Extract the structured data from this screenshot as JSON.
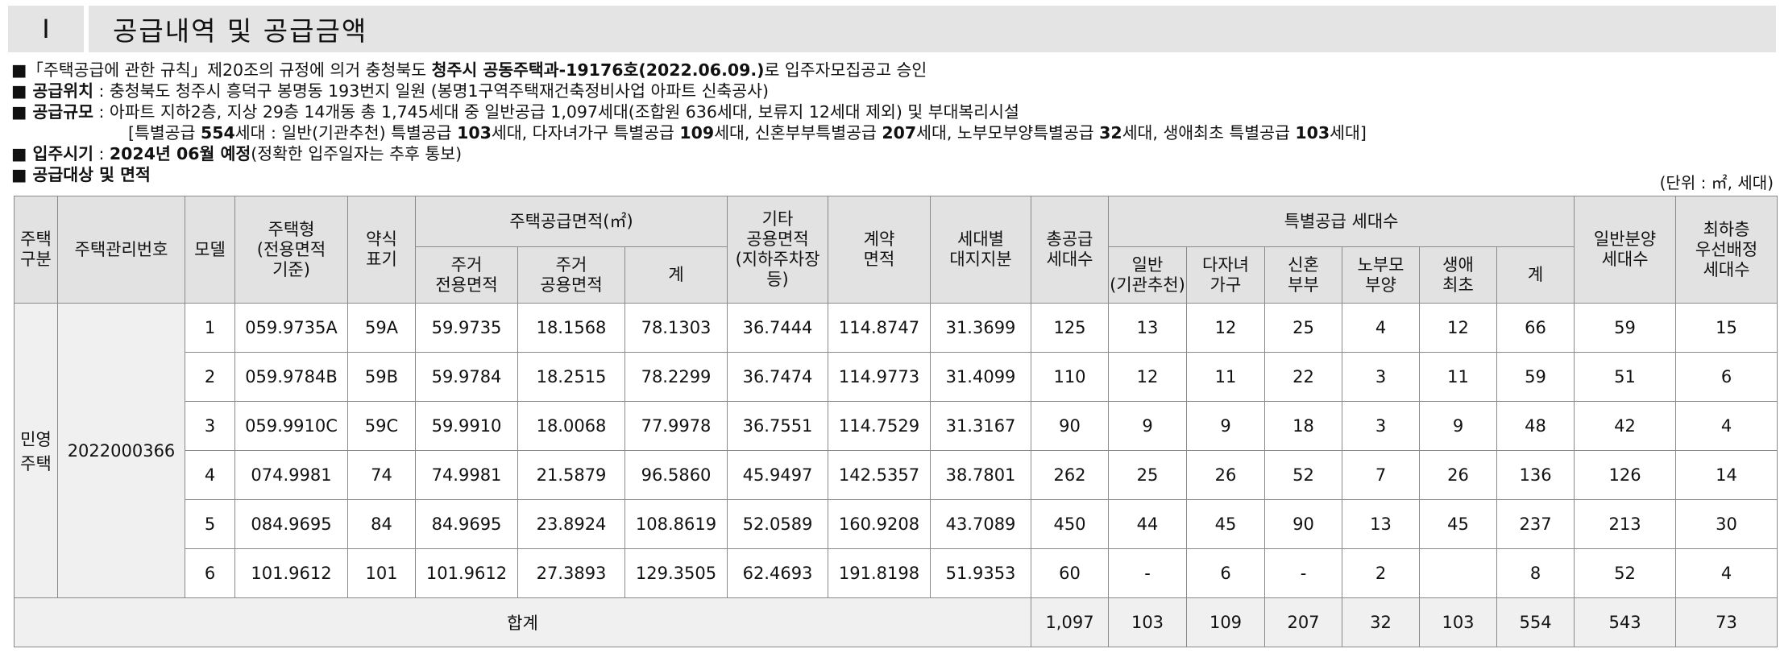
{
  "header": {
    "number": "I",
    "title": "공급내역 및 공급금액"
  },
  "notes": {
    "line1": {
      "p1": "■「주택공급에 관한 규칙」제20조의 규정에 의거 충청북도 ",
      "b1": "청주시 공동주택과-19176호(2022.06.09.)",
      "p2": "로 입주자모집공고 승인"
    },
    "line2": {
      "b1": "■ 공급위치",
      "p1": " : 충청북도 청주시 흥덕구 봉명동 193번지 일원 (봉명1구역주택재건축정비사업 아파트 신축공사)"
    },
    "line3": {
      "b1": "■ 공급규모",
      "p1": " : 아파트 지하2층, 지상 29층 14개동 총 1,745세대 중 일반공급 1,097세대(조합원 636세대, 보류지 12세대 제외) 및 부대복리시설"
    },
    "line4": {
      "p1": "[특별공급 ",
      "b1": "554",
      "p2": "세대 : 일반(기관추천) 특별공급 ",
      "b2": "103",
      "p3": "세대, 다자녀가구 특별공급 ",
      "b3": "109",
      "p4": "세대, 신혼부부특별공급 ",
      "b4": "207",
      "p5": "세대, 노부모부양특별공급 ",
      "b5": "32",
      "p6": "세대, 생애최초 특별공급 ",
      "b6": "103",
      "p7": "세대]"
    },
    "line5": {
      "b1": "■ 입주시기",
      "p1": " : ",
      "b2": "2024년 06월 예정",
      "p2": "(정확한 입주일자는 추후 통보)"
    },
    "line6": {
      "b1": "■ 공급대상 및 면적"
    }
  },
  "unit_label": "(단위 : ㎡, 세대)",
  "table": {
    "headers": {
      "house_type_cat": [
        "주택",
        "구분"
      ],
      "mgmt_no": "주택관리번호",
      "model": "모델",
      "house_type": [
        "주택형",
        "(전용면적",
        "기준)"
      ],
      "abbr": [
        "약식",
        "표기"
      ],
      "supply_area": "주택공급면적(㎡)",
      "private_area": [
        "주거",
        "전용면적"
      ],
      "common_area": [
        "주거",
        "공용면적"
      ],
      "subtotal": "계",
      "other_common": [
        "기타",
        "공용면적",
        "(지하주차장",
        "등)"
      ],
      "contract_area": [
        "계약",
        "면적"
      ],
      "land_share": [
        "세대별",
        "대지지분"
      ],
      "total_units": [
        "총공급",
        "세대수"
      ],
      "special": "특별공급 세대수",
      "sp_general": [
        "일반",
        "(기관추천)"
      ],
      "sp_multi": [
        "다자녀",
        "가구"
      ],
      "sp_newlywed": [
        "신혼",
        "부부"
      ],
      "sp_elderly": [
        "노부모",
        "부양"
      ],
      "sp_first": [
        "생애",
        "최초"
      ],
      "sp_total": "계",
      "general_units": [
        "일반분양",
        "세대수"
      ],
      "lowest_floor": [
        "최하층",
        "우선배정",
        "세대수"
      ]
    },
    "category": [
      "민영",
      "주택"
    ],
    "mgmt_no": "2022000366",
    "rows": [
      [
        "1",
        "059.9735A",
        "59A",
        "59.9735",
        "18.1568",
        "78.1303",
        "36.7444",
        "114.8747",
        "31.3699",
        "125",
        "13",
        "12",
        "25",
        "4",
        "12",
        "66",
        "59",
        "15"
      ],
      [
        "2",
        "059.9784B",
        "59B",
        "59.9784",
        "18.2515",
        "78.2299",
        "36.7474",
        "114.9773",
        "31.4099",
        "110",
        "12",
        "11",
        "22",
        "3",
        "11",
        "59",
        "51",
        "6"
      ],
      [
        "3",
        "059.9910C",
        "59C",
        "59.9910",
        "18.0068",
        "77.9978",
        "36.7551",
        "114.7529",
        "31.3167",
        "90",
        "9",
        "9",
        "18",
        "3",
        "9",
        "48",
        "42",
        "4"
      ],
      [
        "4",
        "074.9981",
        "74",
        "74.9981",
        "21.5879",
        "96.5860",
        "45.9497",
        "142.5357",
        "38.7801",
        "262",
        "25",
        "26",
        "52",
        "7",
        "26",
        "136",
        "126",
        "14"
      ],
      [
        "5",
        "084.9695",
        "84",
        "84.9695",
        "23.8924",
        "108.8619",
        "52.0589",
        "160.9208",
        "43.7089",
        "450",
        "44",
        "45",
        "90",
        "13",
        "45",
        "237",
        "213",
        "30"
      ],
      [
        "6",
        "101.9612",
        "101",
        "101.9612",
        "27.3893",
        "129.3505",
        "62.4693",
        "191.8198",
        "51.9353",
        "60",
        "-",
        "6",
        "-",
        "2",
        "",
        "8",
        "52",
        "4"
      ]
    ],
    "total_label": "합계",
    "totals": [
      "1,097",
      "103",
      "109",
      "207",
      "32",
      "103",
      "554",
      "543",
      "73"
    ]
  }
}
